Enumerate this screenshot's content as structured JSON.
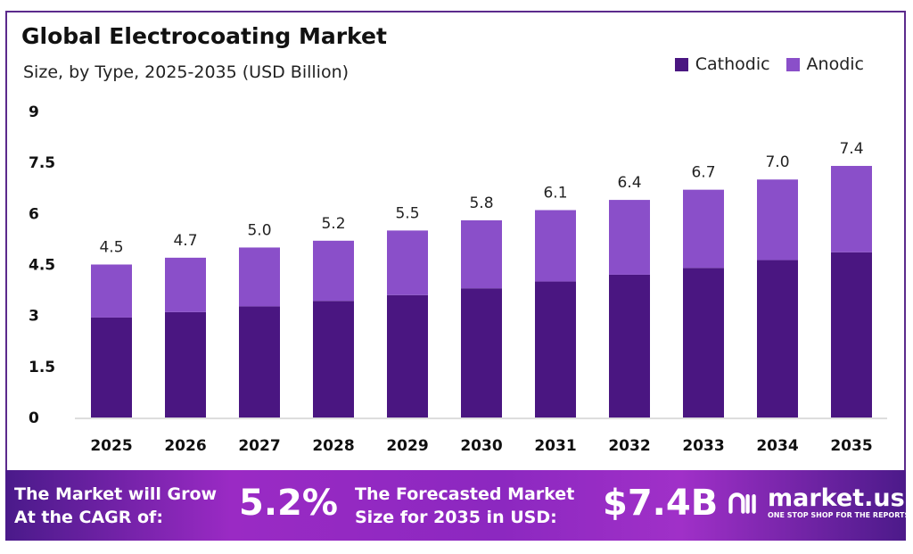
{
  "chart_data": {
    "type": "bar",
    "stacked": true,
    "title": "Global Electrocoating Market",
    "subtitle": "Size, by Type, 2025-2035 (USD Billion)",
    "xlabel": "",
    "ylabel": "",
    "ylim": [
      0,
      9
    ],
    "yticks": [
      "0",
      "1.5",
      "3",
      "4.5",
      "6",
      "7.5",
      "9"
    ],
    "categories": [
      "2025",
      "2026",
      "2027",
      "2028",
      "2029",
      "2030",
      "2031",
      "2032",
      "2033",
      "2034",
      "2035"
    ],
    "series": [
      {
        "name": "Cathodic",
        "color": "#4a1681",
        "values": [
          2.94,
          3.1,
          3.27,
          3.43,
          3.6,
          3.8,
          4.0,
          4.2,
          4.4,
          4.63,
          4.86
        ]
      },
      {
        "name": "Anodic",
        "color": "#8a4fc9",
        "values": [
          1.56,
          1.6,
          1.73,
          1.77,
          1.9,
          2.0,
          2.1,
          2.2,
          2.3,
          2.37,
          2.54
        ]
      }
    ],
    "totals": [
      "4.5",
      "4.7",
      "5.0",
      "5.2",
      "5.5",
      "5.8",
      "6.1",
      "6.4",
      "6.7",
      "7.0",
      "7.4"
    ],
    "legend_position": "top-right",
    "grid": false
  },
  "banner": {
    "cagr_label_1": "The Market will Grow",
    "cagr_label_2": "At the CAGR of:",
    "cagr_value": "5.2%",
    "forecast_label_1": "The Forecasted Market",
    "forecast_label_2": "Size for 2035 in USD:",
    "forecast_value": "$7.4B",
    "logo_name": "market.us",
    "logo_tagline": "ONE STOP SHOP FOR THE REPORTS"
  }
}
